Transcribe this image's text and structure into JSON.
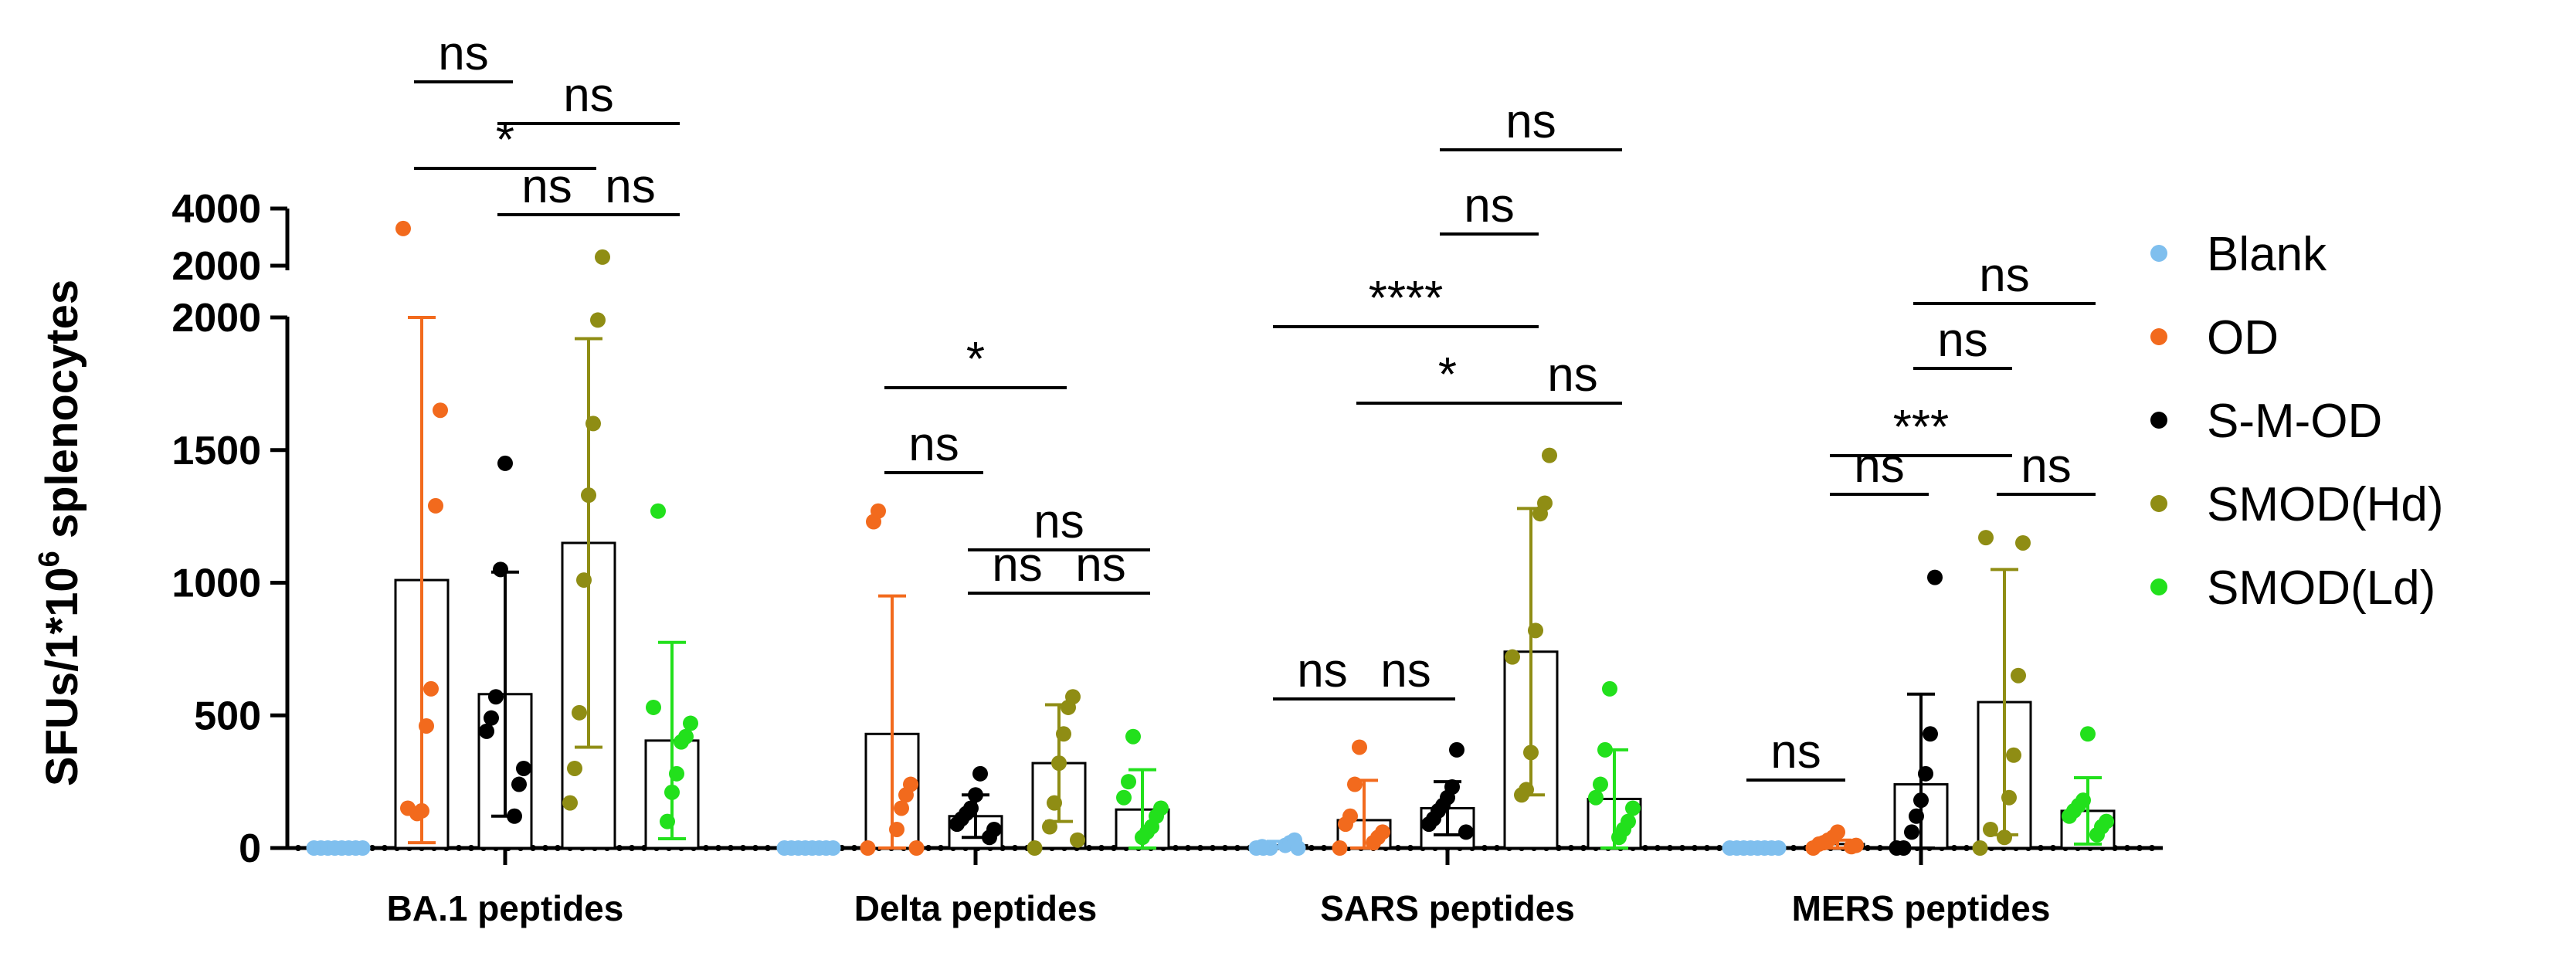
{
  "chart_data": {
    "type": "bar",
    "title": "",
    "xlabel": "",
    "ylabel": "SFUs/1*10",
    "ylabel_superscript": "6",
    "ylabel_suffix": " splenocytes",
    "axis": {
      "lower_range": [
        0,
        2000
      ],
      "lower_ticks": [
        0,
        500,
        1000,
        1500,
        2000
      ],
      "upper_ticks": [
        2000,
        4000
      ],
      "break_between": [
        2000,
        2000
      ]
    },
    "categories": [
      "BA.1 peptides",
      "Delta peptides",
      "SARS peptides",
      "MERS peptides"
    ],
    "series": [
      {
        "name": "Blank",
        "color": "#7fbfee",
        "groups": [
          {
            "mean": 0,
            "sd": 0,
            "points": [
              0,
              0,
              0,
              0,
              0,
              0,
              0,
              0
            ]
          },
          {
            "mean": 0,
            "sd": 0,
            "points": [
              0,
              0,
              0,
              0,
              0,
              0,
              0,
              0
            ]
          },
          {
            "mean": 10,
            "sd": 15,
            "points": [
              0,
              0,
              0,
              10,
              20,
              30,
              0,
              5
            ]
          },
          {
            "mean": 0,
            "sd": 0,
            "points": [
              0,
              0,
              0,
              0,
              0,
              0,
              0,
              0
            ]
          }
        ]
      },
      {
        "name": "OD",
        "color": "#f26a1d",
        "groups": [
          {
            "mean": 1010,
            "sd": 990,
            "points": [
              130,
              140,
              460,
              600,
              1290,
              1650,
              3300,
              150
            ]
          },
          {
            "mean": 430,
            "sd": 520,
            "points": [
              0,
              70,
              150,
              200,
              240,
              1230,
              1270,
              0
            ]
          },
          {
            "mean": 105,
            "sd": 150,
            "points": [
              0,
              20,
              40,
              60,
              90,
              120,
              240,
              380
            ]
          },
          {
            "mean": 15,
            "sd": 15,
            "points": [
              0,
              5,
              10,
              15,
              20,
              30,
              40,
              60
            ]
          }
        ]
      },
      {
        "name": "S-M-OD",
        "color": "#000000",
        "groups": [
          {
            "mean": 580,
            "sd": 460,
            "points": [
              120,
              240,
              300,
              440,
              490,
              570,
              1050,
              1450
            ]
          },
          {
            "mean": 120,
            "sd": 80,
            "points": [
              40,
              70,
              90,
              110,
              130,
              150,
              200,
              280
            ]
          },
          {
            "mean": 150,
            "sd": 100,
            "points": [
              60,
              90,
              110,
              140,
              160,
              190,
              230,
              370
            ]
          },
          {
            "mean": 240,
            "sd": 340,
            "points": [
              0,
              0,
              60,
              120,
              180,
              280,
              430,
              1020
            ]
          }
        ]
      },
      {
        "name": "SMOD(Hd)",
        "color": "#8f8d14",
        "groups": [
          {
            "mean": 1150,
            "sd": 770,
            "points": [
              170,
              300,
              510,
              1010,
              1330,
              1600,
              1990,
              2300
            ]
          },
          {
            "mean": 320,
            "sd": 220,
            "points": [
              0,
              80,
              170,
              320,
              430,
              530,
              570,
              30
            ]
          },
          {
            "mean": 740,
            "sd": 540,
            "points": [
              200,
              220,
              360,
              820,
              1260,
              1300,
              1480,
              720
            ]
          },
          {
            "mean": 550,
            "sd": 500,
            "points": [
              0,
              40,
              190,
              350,
              650,
              1150,
              1170,
              70
            ]
          }
        ]
      },
      {
        "name": "SMOD(Ld)",
        "color": "#22e01c",
        "groups": [
          {
            "mean": 405,
            "sd": 370,
            "points": [
              100,
              210,
              280,
              400,
              420,
              470,
              530,
              1270
            ]
          },
          {
            "mean": 145,
            "sd": 150,
            "points": [
              40,
              60,
              80,
              120,
              150,
              190,
              250,
              420
            ]
          },
          {
            "mean": 185,
            "sd": 185,
            "points": [
              40,
              70,
              100,
              150,
              190,
              240,
              370,
              600
            ]
          },
          {
            "mean": 140,
            "sd": 125,
            "points": [
              50,
              80,
              100,
              120,
              140,
              160,
              180,
              430
            ]
          }
        ]
      }
    ],
    "annotations": [
      {
        "group": 0,
        "from": 1,
        "to": 3,
        "label": "*",
        "level": 3
      },
      {
        "group": 0,
        "from": 1,
        "to": 2,
        "label": "ns",
        "level": 4
      },
      {
        "group": 0,
        "from": 2,
        "to": 4,
        "label": "ns",
        "level": 3.5
      },
      {
        "group": 0,
        "from": 2,
        "to": 3,
        "label": "ns",
        "level": 2
      },
      {
        "group": 0,
        "from": 3,
        "to": 4,
        "label": "ns",
        "level": 2
      },
      {
        "group": 1,
        "from": 1,
        "to": 3,
        "label": "*",
        "level": 6
      },
      {
        "group": 1,
        "from": 1,
        "to": 2,
        "label": "ns",
        "level": 5
      },
      {
        "group": 1,
        "from": 2,
        "to": 4,
        "label": "ns",
        "level": 4
      },
      {
        "group": 1,
        "from": 2,
        "to": 3,
        "label": "ns",
        "level": 3
      },
      {
        "group": 1,
        "from": 3,
        "to": 4,
        "label": "ns",
        "level": 3
      },
      {
        "group": 2,
        "from": 0,
        "to": 3,
        "label": "****",
        "level": 6
      },
      {
        "group": 2,
        "from": 1,
        "to": 3,
        "label": "*",
        "level": 5
      },
      {
        "group": 2,
        "from": 3,
        "to": 4,
        "label": "ns",
        "level": 5
      },
      {
        "group": 2,
        "from": 2,
        "to": 3,
        "label": "ns",
        "level": 8
      },
      {
        "group": 2,
        "from": 2,
        "to": 4,
        "label": "ns",
        "level": 9
      },
      {
        "group": 2,
        "from": 0,
        "to": 1,
        "label": "ns",
        "level": 1
      },
      {
        "group": 2,
        "from": 1,
        "to": 2,
        "label": "ns",
        "level": 1
      },
      {
        "group": 3,
        "from": 0,
        "to": 1,
        "label": "ns",
        "level": 0
      },
      {
        "group": 3,
        "from": 1,
        "to": 3,
        "label": "***",
        "level": 6
      },
      {
        "group": 3,
        "from": 1,
        "to": 2,
        "label": "ns",
        "level": 5
      },
      {
        "group": 3,
        "from": 2,
        "to": 3,
        "label": "ns",
        "level": 7
      },
      {
        "group": 3,
        "from": 2,
        "to": 4,
        "label": "ns",
        "level": 8
      },
      {
        "group": 3,
        "from": 3,
        "to": 4,
        "label": "ns",
        "level": 5
      }
    ]
  }
}
